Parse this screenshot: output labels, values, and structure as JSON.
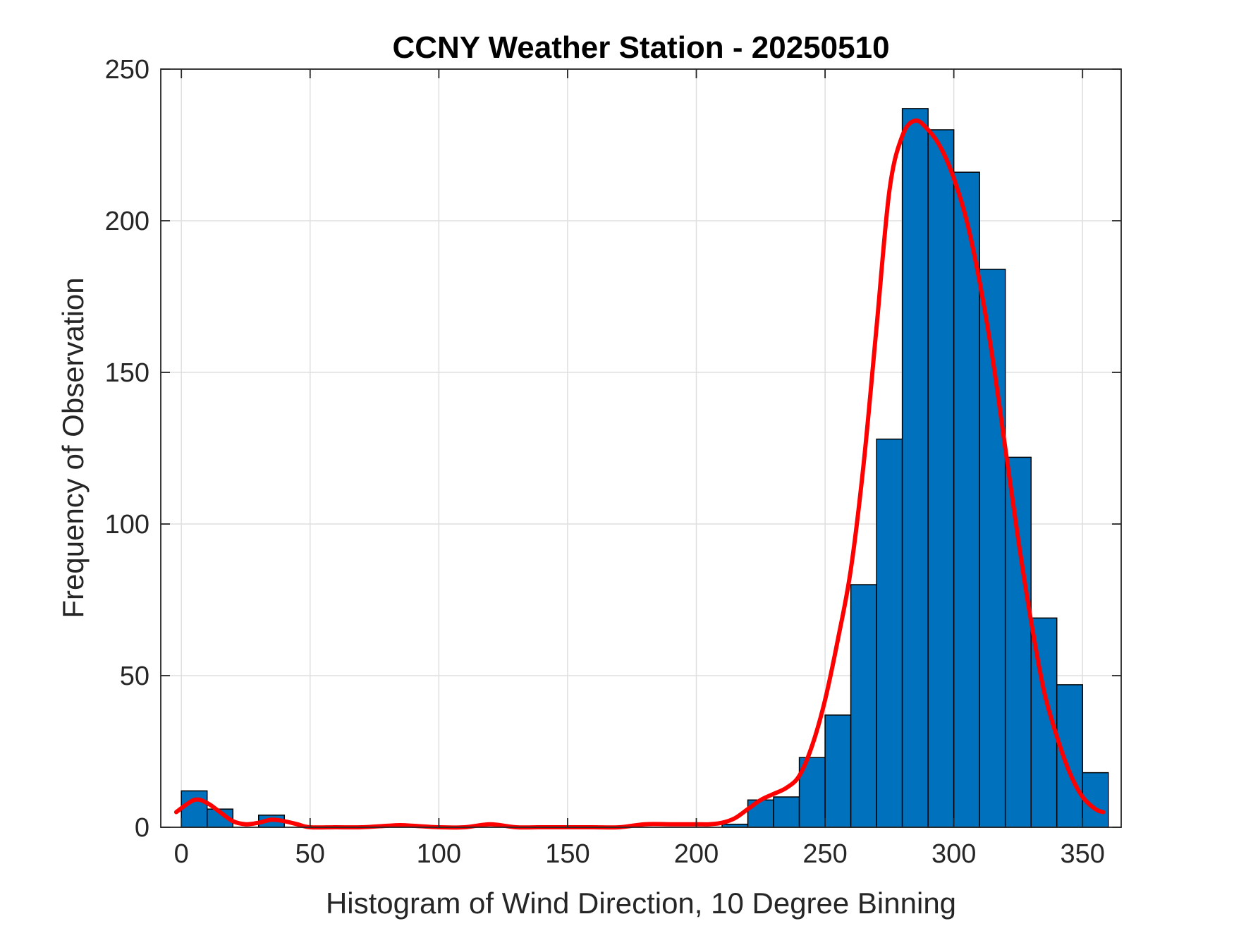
{
  "colors": {
    "bar_fill": "#0072BD",
    "bar_edge": "#000000",
    "curve": "#FF0000",
    "grid": "#DFDFDF",
    "axes": "#262626"
  },
  "chart_data": {
    "type": "bar",
    "title": "CCNY Weather Station - 20250510",
    "xlabel": "Histogram of Wind Direction, 10 Degree Binning",
    "ylabel": "Frequency of Observation",
    "xlim": [
      -8,
      365
    ],
    "ylim": [
      0,
      250
    ],
    "xticks": [
      0,
      50,
      100,
      150,
      200,
      250,
      300,
      350
    ],
    "yticks": [
      0,
      50,
      100,
      150,
      200,
      250
    ],
    "grid": true,
    "bin_width": 10,
    "bin_edges": [
      0,
      10,
      20,
      30,
      40,
      50,
      60,
      70,
      80,
      90,
      100,
      110,
      120,
      130,
      140,
      150,
      160,
      170,
      180,
      190,
      200,
      210,
      220,
      230,
      240,
      250,
      260,
      270,
      280,
      290,
      300,
      310,
      320,
      330,
      340,
      350,
      360
    ],
    "counts": [
      12,
      6,
      0,
      4,
      0,
      0,
      0,
      0,
      0,
      0,
      0,
      0,
      0,
      0,
      0,
      0,
      0,
      0,
      0,
      0,
      0,
      1,
      9,
      10,
      23,
      37,
      80,
      128,
      237,
      230,
      216,
      184,
      122,
      69,
      47,
      18
    ],
    "series": [
      {
        "type": "line",
        "x": [
          -2,
          5,
          10,
          15,
          20,
          25,
          30,
          35,
          40,
          45,
          50,
          60,
          70,
          80,
          85,
          90,
          100,
          110,
          120,
          130,
          140,
          150,
          160,
          170,
          180,
          190,
          200,
          205,
          210,
          215,
          220,
          225,
          230,
          235,
          240,
          245,
          250,
          255,
          260,
          265,
          270,
          275,
          280,
          285,
          290,
          295,
          300,
          305,
          310,
          315,
          320,
          325,
          330,
          335,
          340,
          345,
          350,
          355,
          358
        ],
        "y": [
          5,
          9,
          8,
          5,
          2,
          1,
          1.5,
          2.5,
          2,
          1,
          0,
          0,
          0,
          0.5,
          0.7,
          0.5,
          0,
          0,
          1,
          0,
          0,
          0,
          0,
          0,
          1,
          1,
          1,
          1,
          1.5,
          3,
          6,
          9,
          11,
          13,
          17,
          27,
          42,
          62,
          85,
          120,
          165,
          210,
          228,
          233,
          230,
          224,
          214,
          200,
          180,
          155,
          125,
          95,
          68,
          45,
          30,
          18,
          10,
          6,
          5
        ]
      }
    ]
  }
}
